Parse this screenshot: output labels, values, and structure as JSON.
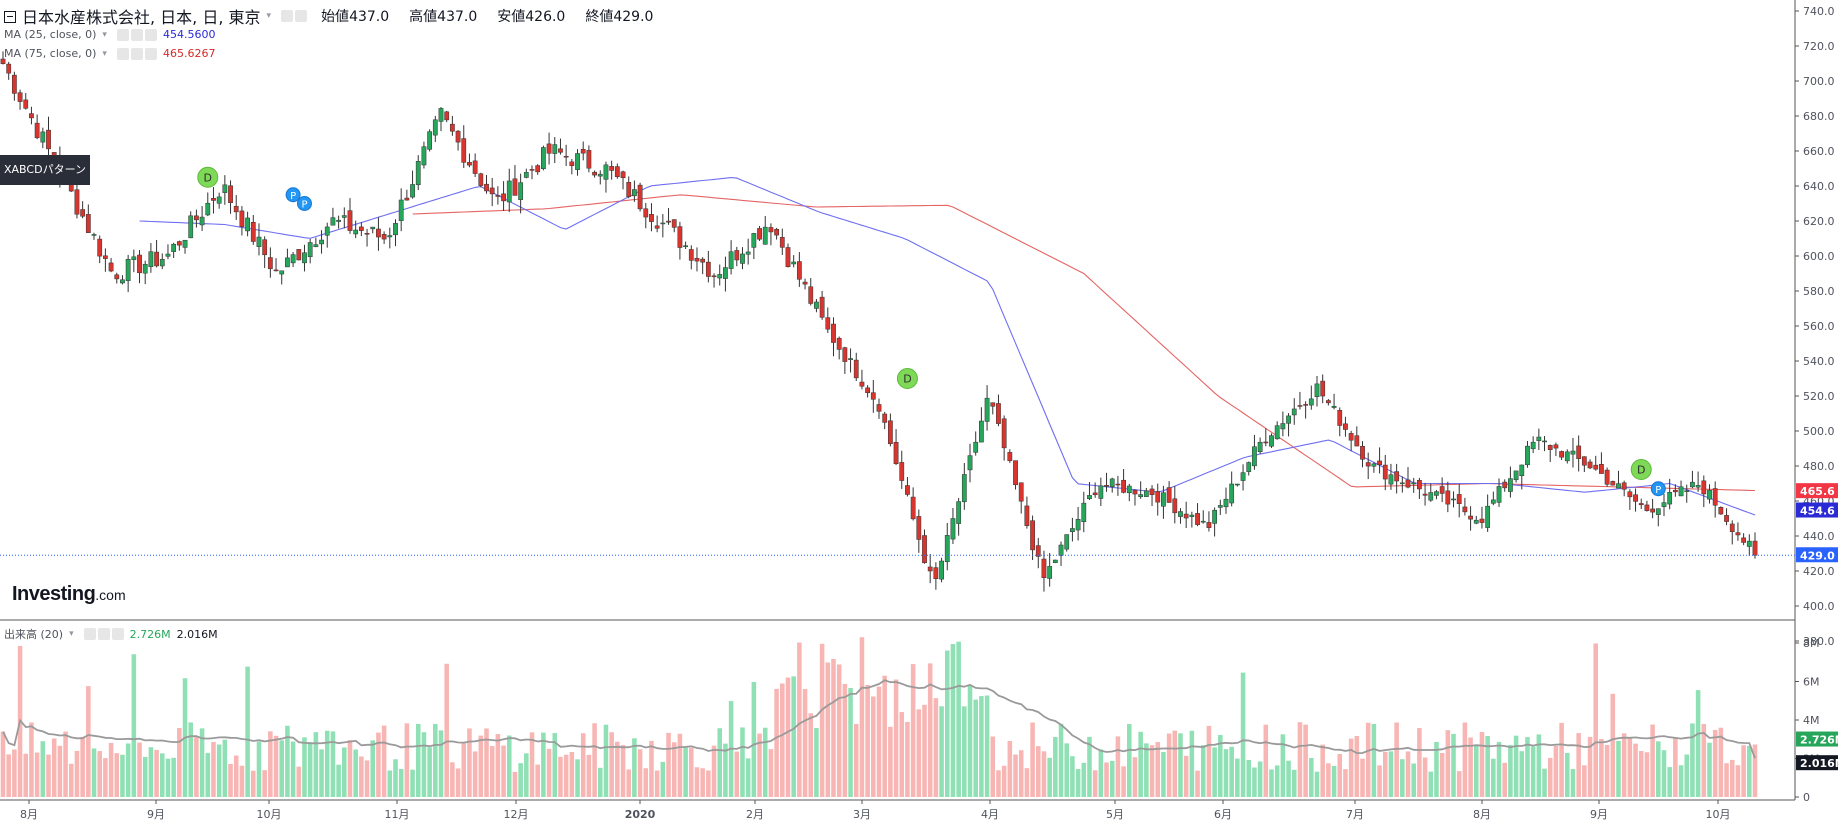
{
  "header": {
    "symbol": "日本水産株式会社, 日本, 日, 東京",
    "ohlc": [
      {
        "label": "始値",
        "value": "437.0"
      },
      {
        "label": "高値",
        "value": "437.0"
      },
      {
        "label": "安値",
        "value": "426.0"
      },
      {
        "label": "終値",
        "value": "429.0"
      }
    ]
  },
  "indicators": {
    "ma25": {
      "label": "MA (25, close, 0)",
      "value": "454.5600"
    },
    "ma75": {
      "label": "MA (75, close, 0)",
      "value": "465.6267"
    },
    "volume": {
      "label": "出来高 (20)",
      "value1": "2.726M",
      "value2": "2.016M"
    }
  },
  "pattern_tooltip": "XABCDパターン",
  "watermark": {
    "brand": "Investing",
    "domain": ".com"
  },
  "price_axis": {
    "ticks": [
      "740.0",
      "720.0",
      "700.0",
      "680.0",
      "660.0",
      "640.0",
      "620.0",
      "600.0",
      "580.0",
      "560.0",
      "540.0",
      "520.0",
      "500.0",
      "480.0",
      "460.0",
      "440.0",
      "420.0",
      "400.0",
      "380.0"
    ],
    "tags": {
      "ma75": "465.6",
      "ma25": "454.6",
      "last": "429.0"
    }
  },
  "volume_axis": {
    "ticks": [
      "8M",
      "6M",
      "4M",
      "2M",
      "0"
    ],
    "tags": {
      "vol": "2.726M",
      "vol_ma": "2.016M"
    }
  },
  "time_axis": [
    "8月",
    "9月",
    "10月",
    "11月",
    "12月",
    "2020",
    "2月",
    "3月",
    "4月",
    "5月",
    "6月",
    "7月",
    "8月",
    "9月",
    "10月"
  ],
  "markers": [
    {
      "label": "D",
      "type": "D"
    },
    {
      "label": "P",
      "type": "P"
    },
    {
      "label": "P",
      "type": "P"
    },
    {
      "label": "D",
      "type": "D"
    },
    {
      "label": "D",
      "type": "D"
    },
    {
      "label": "P",
      "type": "P"
    }
  ],
  "colors": {
    "up": "#26a65b",
    "down": "#d9352f",
    "vol_up": "#8fe0b4",
    "vol_down": "#f7b5b3",
    "ma25": "#6f6ff2",
    "ma75": "#e56464",
    "vol_ma": "#9a9a9a",
    "d_marker": "#7ed957",
    "p_marker": "#2196f3",
    "last_line": "#2962ff"
  },
  "chart_data": {
    "type": "candlestick",
    "title": "日本水産株式会社, 日本, 日, 東京",
    "y_range": [
      380,
      740
    ],
    "volume_range": [
      0,
      8.7
    ],
    "volume_unit": "M",
    "x_labels": [
      "8月",
      "9月",
      "10月",
      "11月",
      "12月",
      "2020",
      "2月",
      "3月",
      "4月",
      "5月",
      "6月",
      "7月",
      "8月",
      "9月",
      "10月"
    ],
    "series": [
      {
        "name": "MA (25, close, 0)",
        "last": 454.56
      },
      {
        "name": "MA (75, close, 0)",
        "last": 465.6267
      },
      {
        "name": "出来高 (20)",
        "last": [
          2.726,
          2.016
        ]
      }
    ],
    "close_keypoints": [
      {
        "x": "8月",
        "close": 710
      },
      {
        "x": "8月",
        "close": 650
      },
      {
        "x": "8月",
        "close": 590
      },
      {
        "x": "9月",
        "close": 600
      },
      {
        "x": "9月",
        "close": 640
      },
      {
        "x": "10月",
        "close": 590
      },
      {
        "x": "10月",
        "close": 620
      },
      {
        "x": "11月",
        "close": 610
      },
      {
        "x": "11月",
        "close": 680
      },
      {
        "x": "12月",
        "close": 630
      },
      {
        "x": "12月",
        "close": 660
      },
      {
        "x": "2020",
        "close": 650
      },
      {
        "x": "2020",
        "close": 620
      },
      {
        "x": "2月",
        "close": 590
      },
      {
        "x": "2月",
        "close": 620
      },
      {
        "x": "3月",
        "close": 560
      },
      {
        "x": "3月",
        "close": 515
      },
      {
        "x": "3月",
        "close": 410
      },
      {
        "x": "4月",
        "close": 520
      },
      {
        "x": "4月",
        "close": 415
      },
      {
        "x": "4月",
        "close": 470
      },
      {
        "x": "5月",
        "close": 465
      },
      {
        "x": "5月",
        "close": 445
      },
      {
        "x": "6月",
        "close": 495
      },
      {
        "x": "6月",
        "close": 525
      },
      {
        "x": "7月",
        "close": 480
      },
      {
        "x": "7月",
        "close": 465
      },
      {
        "x": "8月",
        "close": 450
      },
      {
        "x": "8月",
        "close": 495
      },
      {
        "x": "9月",
        "close": 480
      },
      {
        "x": "9月",
        "close": 455
      },
      {
        "x": "10月",
        "close": 470
      },
      {
        "x": "10月",
        "close": 429
      }
    ],
    "ma25_keypoints": [
      620,
      618,
      610,
      625,
      640,
      615,
      640,
      645,
      625,
      610,
      585,
      470,
      465,
      485,
      495,
      470,
      470,
      465,
      470,
      452
    ],
    "ma75_keypoints": [
      624,
      627,
      635,
      628,
      629,
      590,
      520,
      468,
      470,
      468,
      466
    ]
  }
}
